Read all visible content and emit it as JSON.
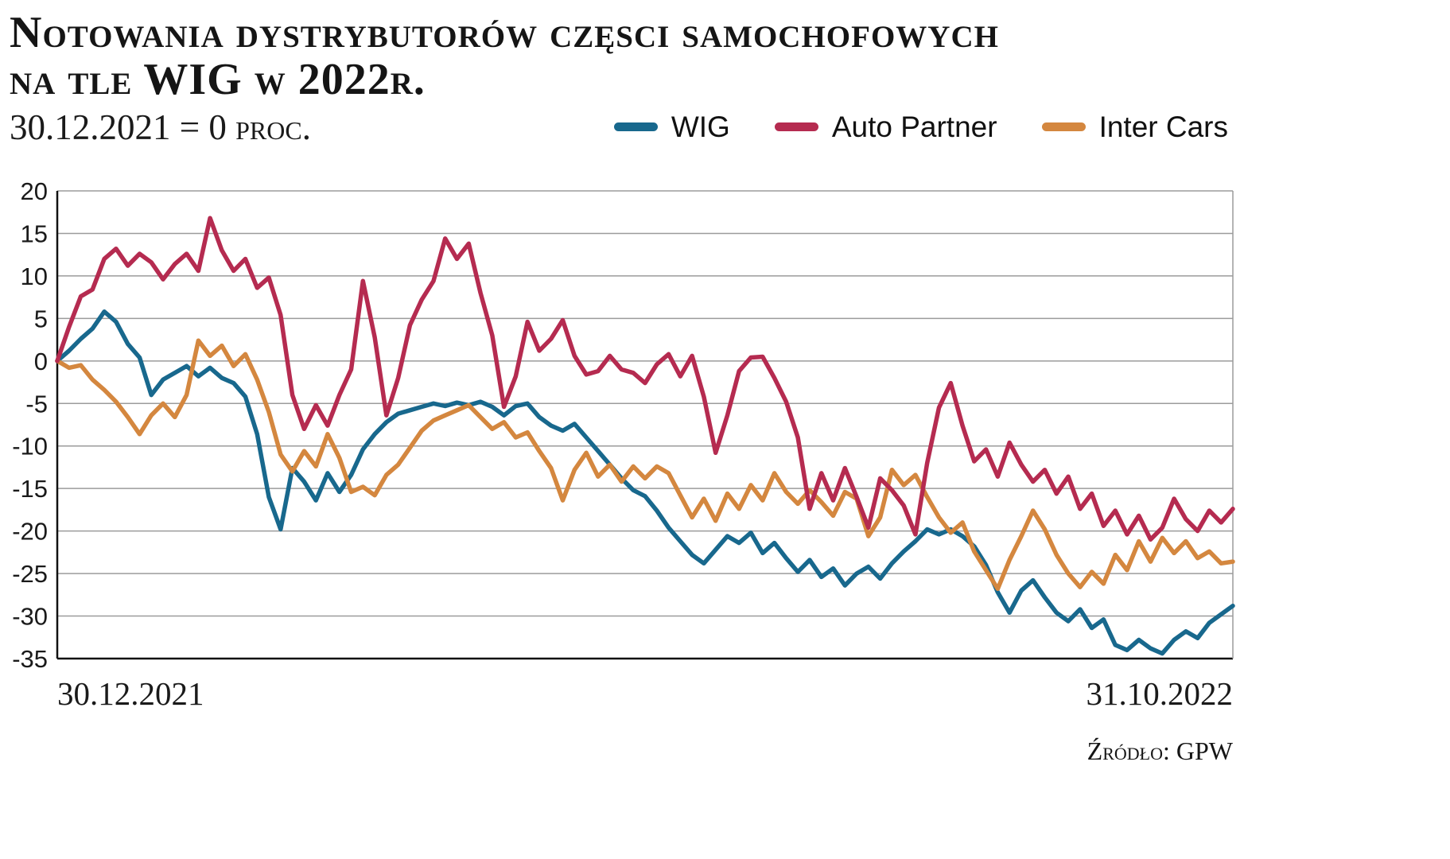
{
  "header": {
    "title_line1": "Notowania dystrybutorów częsci samochofowych",
    "title_line2": "na tle WIG w 2022r.",
    "subtitle": "30.12.2021 = 0 proc."
  },
  "footer": {
    "source": "Źródło: GPW"
  },
  "chart_data": {
    "type": "line",
    "title": "Notowania dystrybutorów częsci samochofowych na tle WIG w 2022r.",
    "subtitle": "30.12.2021 = 0 proc.",
    "x_axis": {
      "start_label": "30.12.2021",
      "end_label": "31.10.2022"
    },
    "ylim": [
      -35,
      20
    ],
    "y_ticks": [
      20,
      15,
      10,
      5,
      0,
      -5,
      -10,
      -15,
      -20,
      -25,
      -30,
      -35
    ],
    "y_unit": "percent change vs 30.12.2021",
    "grid": true,
    "legend_position": "top-right",
    "series": [
      {
        "name": "WIG",
        "color": "#18688d",
        "values": [
          0,
          1.2,
          2.6,
          3.8,
          5.8,
          4.6,
          2,
          0.4,
          -4,
          -2.2,
          -1.4,
          -0.6,
          -1.8,
          -0.8,
          -2,
          -2.6,
          -4.2,
          -8.6,
          -16,
          -19.8,
          -12.6,
          -14.2,
          -16.4,
          -13.2,
          -15.4,
          -13.4,
          -10.4,
          -8.6,
          -7.2,
          -6.2,
          -5.8,
          -5.4,
          -5,
          -5.3,
          -4.9,
          -5.2,
          -4.8,
          -5.4,
          -6.4,
          -5.3,
          -5,
          -6.6,
          -7.6,
          -8.2,
          -7.4,
          -9,
          -10.6,
          -12.2,
          -13.8,
          -15.2,
          -15.9,
          -17.6,
          -19.6,
          -21.2,
          -22.8,
          -23.8,
          -22.2,
          -20.6,
          -21.4,
          -20.2,
          -22.6,
          -21.4,
          -23.2,
          -24.8,
          -23.4,
          -25.4,
          -24.4,
          -26.4,
          -25,
          -24.2,
          -25.6,
          -23.8,
          -22.4,
          -21.2,
          -19.8,
          -20.4,
          -19.8,
          -20.6,
          -21.8,
          -24,
          -27.2,
          -29.6,
          -27,
          -25.8,
          -27.8,
          -29.6,
          -30.6,
          -29.2,
          -31.4,
          -30.4,
          -33.4,
          -34,
          -32.8,
          -33.8,
          -34.4,
          -32.8,
          -31.8,
          -32.6,
          -30.8,
          -29.8,
          -28.8
        ]
      },
      {
        "name": "Auto Partner",
        "color": "#b52b50",
        "values": [
          0,
          4,
          7.6,
          8.4,
          12,
          13.2,
          11.2,
          12.6,
          11.6,
          9.6,
          11.4,
          12.6,
          10.6,
          16.8,
          13,
          10.6,
          12,
          8.6,
          9.8,
          5.4,
          -4,
          -8,
          -5.2,
          -7.6,
          -4,
          -1,
          9.4,
          2.8,
          -6.4,
          -2,
          4.2,
          7.2,
          9.4,
          14.4,
          12,
          13.8,
          8,
          3,
          -5.4,
          -1.8,
          4.6,
          1.2,
          2.6,
          4.8,
          0.6,
          -1.6,
          -1.2,
          0.6,
          -1,
          -1.4,
          -2.6,
          -0.4,
          0.8,
          -1.8,
          0.6,
          -4.2,
          -10.8,
          -6.4,
          -1.2,
          0.4,
          0.5,
          -2,
          -4.8,
          -9,
          -17.4,
          -13.2,
          -16.4,
          -12.6,
          -16,
          -19.6,
          -13.8,
          -15.2,
          -17,
          -20.4,
          -12,
          -5.5,
          -2.6,
          -7.6,
          -11.8,
          -10.4,
          -13.6,
          -9.6,
          -12.2,
          -14.2,
          -12.8,
          -15.6,
          -13.6,
          -17.4,
          -15.6,
          -19.4,
          -17.6,
          -20.4,
          -18.2,
          -21,
          -19.6,
          -16.2,
          -18.6,
          -20,
          -17.6,
          -19,
          -17.4
        ]
      },
      {
        "name": "Inter Cars",
        "color": "#d4873f",
        "values": [
          0,
          -0.8,
          -0.5,
          -2.2,
          -3.4,
          -4.8,
          -6.6,
          -8.6,
          -6.4,
          -5,
          -6.6,
          -4,
          2.4,
          0.6,
          1.8,
          -0.6,
          0.8,
          -2.2,
          -6,
          -11,
          -13,
          -10.6,
          -12.4,
          -8.6,
          -11.4,
          -15.4,
          -14.8,
          -15.8,
          -13.4,
          -12.2,
          -10.2,
          -8.2,
          -7,
          -6.4,
          -5.8,
          -5.2,
          -6.6,
          -8,
          -7.2,
          -9,
          -8.4,
          -10.6,
          -12.6,
          -16.4,
          -12.8,
          -10.8,
          -13.6,
          -12.2,
          -14.2,
          -12.4,
          -13.8,
          -12.4,
          -13.2,
          -15.8,
          -18.4,
          -16.2,
          -18.8,
          -15.6,
          -17.4,
          -14.6,
          -16.4,
          -13.2,
          -15.4,
          -16.8,
          -15.2,
          -16.6,
          -18.2,
          -15.4,
          -16.2,
          -20.6,
          -18.4,
          -12.8,
          -14.6,
          -13.4,
          -16,
          -18.4,
          -20.2,
          -19,
          -22.4,
          -24.6,
          -26.8,
          -23.4,
          -20.6,
          -17.6,
          -19.8,
          -22.8,
          -25,
          -26.6,
          -24.8,
          -26.2,
          -22.8,
          -24.6,
          -21.2,
          -23.6,
          -20.8,
          -22.6,
          -21.2,
          -23.2,
          -22.4,
          -23.8,
          -23.6
        ]
      }
    ]
  }
}
